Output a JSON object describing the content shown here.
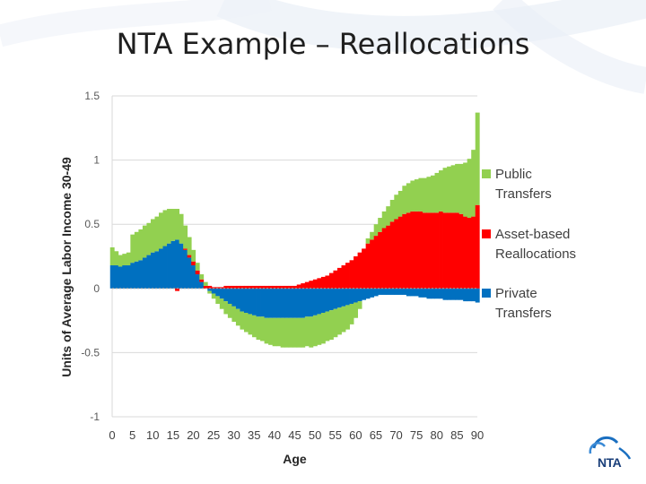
{
  "slide": {
    "title": "NTA Example – Reallocations"
  },
  "logo": {
    "text": "NTA",
    "icon": "nta-swirl-icon"
  },
  "colors": {
    "public": "#92d050",
    "asset": "#ff0000",
    "private": "#0070c0",
    "grid": "#d9d9d9",
    "axis_text": "#595959"
  },
  "chart_data": {
    "type": "area",
    "stacked": true,
    "xlabel": "Age",
    "ylabel": "Units of Average Labor Income 30-49",
    "ylim": [
      -1,
      1.5
    ],
    "yticks": [
      1.5,
      1,
      0.5,
      0,
      -0.5,
      -1
    ],
    "ytick_labels": [
      "1.5",
      "1",
      "0.5",
      "0",
      "-0.5",
      "-1"
    ],
    "xlim": [
      0,
      90
    ],
    "xticks": [
      "0",
      "5",
      "10",
      "15",
      "20",
      "25",
      "30",
      "35",
      "40",
      "45",
      "50",
      "55",
      "60",
      "65",
      "70",
      "75",
      "80",
      "85",
      "90"
    ],
    "grid": true,
    "legend_position": "right",
    "ages": [
      0,
      1,
      2,
      3,
      4,
      5,
      6,
      7,
      8,
      9,
      10,
      11,
      12,
      13,
      14,
      15,
      16,
      17,
      18,
      19,
      20,
      21,
      22,
      23,
      24,
      25,
      26,
      27,
      28,
      29,
      30,
      31,
      32,
      33,
      34,
      35,
      36,
      37,
      38,
      39,
      40,
      41,
      42,
      43,
      44,
      45,
      46,
      47,
      48,
      49,
      50,
      51,
      52,
      53,
      54,
      55,
      56,
      57,
      58,
      59,
      60,
      61,
      62,
      63,
      64,
      65,
      66,
      67,
      68,
      69,
      70,
      71,
      72,
      73,
      74,
      75,
      76,
      77,
      78,
      79,
      80,
      81,
      82,
      83,
      84,
      85,
      86,
      87,
      88,
      89,
      90
    ],
    "series": [
      {
        "name": "Private Transfers",
        "values": [
          0.18,
          0.18,
          0.17,
          0.18,
          0.18,
          0.2,
          0.21,
          0.22,
          0.24,
          0.26,
          0.28,
          0.29,
          0.31,
          0.33,
          0.35,
          0.37,
          0.38,
          0.35,
          0.3,
          0.24,
          0.18,
          0.11,
          0.05,
          0.0,
          -0.02,
          -0.04,
          -0.06,
          -0.08,
          -0.1,
          -0.12,
          -0.14,
          -0.16,
          -0.18,
          -0.19,
          -0.2,
          -0.21,
          -0.22,
          -0.22,
          -0.23,
          -0.23,
          -0.23,
          -0.23,
          -0.23,
          -0.23,
          -0.23,
          -0.23,
          -0.23,
          -0.23,
          -0.22,
          -0.22,
          -0.21,
          -0.2,
          -0.19,
          -0.18,
          -0.17,
          -0.16,
          -0.15,
          -0.14,
          -0.13,
          -0.12,
          -0.11,
          -0.1,
          -0.09,
          -0.08,
          -0.07,
          -0.06,
          -0.05,
          -0.05,
          -0.05,
          -0.05,
          -0.05,
          -0.05,
          -0.05,
          -0.06,
          -0.06,
          -0.06,
          -0.07,
          -0.07,
          -0.08,
          -0.08,
          -0.08,
          -0.08,
          -0.09,
          -0.09,
          -0.09,
          -0.09,
          -0.09,
          -0.1,
          -0.1,
          -0.1,
          -0.11
        ]
      },
      {
        "name": "Asset-based Reallocations",
        "values": [
          0.0,
          0.0,
          0.0,
          0.0,
          0.0,
          0.0,
          0.0,
          0.0,
          0.0,
          0.0,
          0.0,
          0.0,
          0.0,
          0.0,
          0.0,
          0.0,
          -0.02,
          0.0,
          0.01,
          0.02,
          0.03,
          0.03,
          0.02,
          0.02,
          0.02,
          0.01,
          0.01,
          0.01,
          0.02,
          0.02,
          0.02,
          0.02,
          0.02,
          0.02,
          0.02,
          0.02,
          0.02,
          0.02,
          0.02,
          0.02,
          0.02,
          0.02,
          0.02,
          0.02,
          0.02,
          0.02,
          0.03,
          0.04,
          0.05,
          0.06,
          0.07,
          0.08,
          0.09,
          0.1,
          0.12,
          0.14,
          0.16,
          0.18,
          0.2,
          0.22,
          0.25,
          0.28,
          0.31,
          0.35,
          0.38,
          0.41,
          0.44,
          0.47,
          0.49,
          0.52,
          0.54,
          0.56,
          0.58,
          0.59,
          0.6,
          0.6,
          0.6,
          0.59,
          0.59,
          0.59,
          0.59,
          0.6,
          0.59,
          0.59,
          0.59,
          0.59,
          0.58,
          0.56,
          0.55,
          0.56,
          0.65
        ]
      },
      {
        "name": "Public Transfers",
        "values": [
          0.14,
          0.11,
          0.09,
          0.09,
          0.1,
          0.22,
          0.23,
          0.24,
          0.25,
          0.25,
          0.26,
          0.27,
          0.28,
          0.28,
          0.27,
          0.25,
          0.24,
          0.23,
          0.18,
          0.14,
          0.09,
          0.06,
          0.04,
          0.03,
          -0.02,
          -0.04,
          -0.06,
          -0.08,
          -0.1,
          -0.11,
          -0.12,
          -0.13,
          -0.14,
          -0.15,
          -0.16,
          -0.17,
          -0.18,
          -0.19,
          -0.2,
          -0.21,
          -0.22,
          -0.22,
          -0.23,
          -0.23,
          -0.23,
          -0.23,
          -0.23,
          -0.23,
          -0.23,
          -0.24,
          -0.24,
          -0.24,
          -0.24,
          -0.23,
          -0.23,
          -0.22,
          -0.21,
          -0.2,
          -0.19,
          -0.16,
          -0.12,
          -0.06,
          0.0,
          0.04,
          0.06,
          0.09,
          0.11,
          0.13,
          0.15,
          0.17,
          0.19,
          0.2,
          0.22,
          0.23,
          0.24,
          0.25,
          0.26,
          0.27,
          0.28,
          0.29,
          0.31,
          0.32,
          0.35,
          0.36,
          0.37,
          0.38,
          0.39,
          0.42,
          0.46,
          0.52,
          0.72
        ]
      }
    ],
    "legend": [
      "Public\nTransfers",
      "Asset-based\nReallocations",
      "Private\nTransfers"
    ]
  }
}
